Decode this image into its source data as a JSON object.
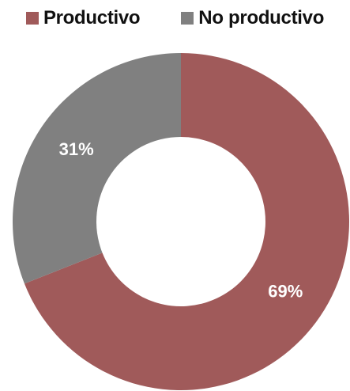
{
  "chart_data": {
    "type": "pie",
    "donut": true,
    "categories": [
      "Productivo",
      "No productivo"
    ],
    "values": [
      69,
      31
    ],
    "labels": [
      "69%",
      "31%"
    ],
    "colors": [
      "#a05a5a",
      "#808080"
    ],
    "legend": "top"
  },
  "legend": {
    "items": [
      {
        "label": "Productivo",
        "color": "#a05a5a"
      },
      {
        "label": "No productivo",
        "color": "#808080"
      }
    ]
  }
}
